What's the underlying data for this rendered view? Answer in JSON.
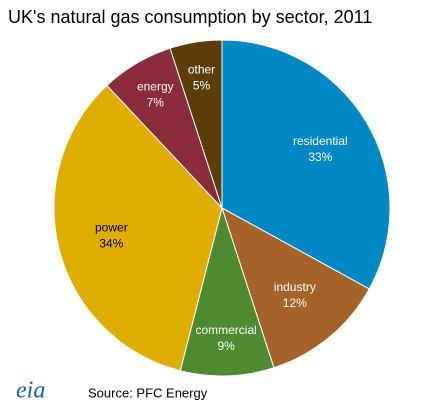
{
  "chart_data": {
    "type": "pie",
    "title": "UK's natural gas consumption by sector, 2011",
    "categories": [
      "residential",
      "industry",
      "commercial",
      "power",
      "energy",
      "other"
    ],
    "values": [
      33,
      12,
      9,
      34,
      7,
      5
    ],
    "value_labels": [
      "33%",
      "12%",
      "9%",
      "34%",
      "7%",
      "5%"
    ],
    "colors": [
      "#0088c4",
      "#a5632a",
      "#4e8a2f",
      "#dfad00",
      "#8c2b3b",
      "#5c3e0b"
    ],
    "source": "Source: PFC Energy",
    "logo": "eia"
  }
}
